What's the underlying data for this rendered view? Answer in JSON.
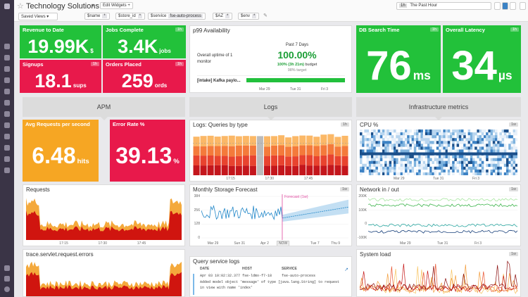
{
  "header": {
    "title": "Technology Solutions",
    "edit_widgets": "Edit Widgets",
    "time_badge": "1h",
    "time_range": "The Past Hour"
  },
  "filters": {
    "saved_views": "Saved Views",
    "vars": [
      {
        "name": "$name",
        "value": "*"
      },
      {
        "name": "$store_id",
        "value": "*"
      },
      {
        "name": "$service",
        "value": "fse-auto-process"
      },
      {
        "name": "$AZ",
        "value": "*"
      },
      {
        "name": "$env",
        "value": "*"
      }
    ]
  },
  "tiles": [
    {
      "title": "Revenue to Date",
      "value": "19.99K",
      "unit": "$"
    },
    {
      "title": "Jobs Complete",
      "value": "3.4K",
      "unit": "jobs",
      "badge": "1h"
    },
    {
      "title": "Signups",
      "value": "18.1",
      "unit": "sups",
      "badge": "1h"
    },
    {
      "title": "Orders Placed",
      "value": "259",
      "unit": "ords",
      "badge": "1h"
    },
    {
      "title": "DB Search Time",
      "value": "76",
      "unit": "ms",
      "badge": "1h"
    },
    {
      "title": "Overall Latency",
      "value": "34",
      "unit": "µs",
      "badge": "1h"
    },
    {
      "title": "Avg Requests per second",
      "value": "6.48",
      "unit": "hits"
    },
    {
      "title": "Error Rate %",
      "value": "39.13",
      "unit": "%"
    }
  ],
  "slo": {
    "title": "p99 Availability",
    "summary": "Overall uptime of 1 monitor",
    "period": "Past 7 Days",
    "value": "100.00%",
    "budget_value": "100% (3h 21m)",
    "budget_label": "budget",
    "target": "98% target",
    "monitor": "[intake] Kafka paylo...",
    "xticks": [
      "Mar 29",
      "Tue 31",
      "Fri 3"
    ]
  },
  "groups": [
    "APM",
    "Logs",
    "Infrastructure metrics"
  ],
  "graphs": {
    "logs_queries": {
      "title": "Logs: Queries by type",
      "badge": "1h",
      "xticks": [
        "17:15",
        "17:30",
        "17:45"
      ]
    },
    "cpu": {
      "title": "CPU %",
      "badge": "1w",
      "xticks": [
        "Mar 29",
        "Tue 31",
        "Fri 3"
      ]
    },
    "requests": {
      "title": "Requests",
      "xticks": [
        "17:15",
        "17:30",
        "17:45"
      ]
    },
    "storage": {
      "title": "Monthly Storage Forecast",
      "badge": "1w",
      "forecast": "Forecast (1w)",
      "now": "NOW",
      "yticks": [
        "384",
        "256",
        "128",
        "0"
      ],
      "xticks": [
        "Mar 29",
        "Sun 31",
        "Apr 2",
        "Tue 7",
        "Thu 9"
      ]
    },
    "network": {
      "title": "Network in / out",
      "badge": "1w",
      "yticks": [
        "200K",
        "100K",
        "0",
        "-100K"
      ],
      "xticks": [
        "Mar 29",
        "Tue 31",
        "Fri 3"
      ]
    },
    "errors": {
      "title": "trace.servlet.request.errors"
    },
    "system_load": {
      "title": "System load",
      "badge": "1w"
    }
  },
  "logs": {
    "title": "Query service logs",
    "columns": [
      "DATE",
      "HOST",
      "SERVICE"
    ],
    "rows": [
      {
        "date": "Apr 03 10:02:32.377",
        "host": "fse-ldmx-f7-18",
        "service": "fse-auto-process",
        "message": "Added model object 'message' of type [java.lang.String] to request in view with name 'index'"
      }
    ]
  }
}
